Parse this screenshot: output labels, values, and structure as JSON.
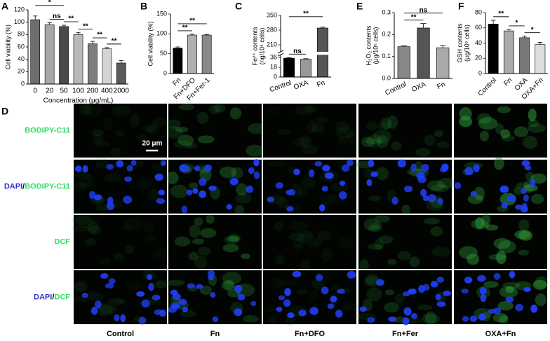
{
  "chart_data": [
    {
      "type": "bar",
      "panel": "A",
      "ylabel": [
        "Cell viability (%)"
      ],
      "xlabel": "Concentration (μg/mL)",
      "categories": [
        "0",
        "20",
        "50",
        "100",
        "200",
        "400",
        "2000"
      ],
      "values": [
        104,
        96,
        93,
        80,
        65,
        57,
        34
      ],
      "errors": [
        6,
        3,
        2,
        3,
        4,
        2,
        4
      ],
      "colors": [
        "#6e6e6e",
        "#a8a8a8",
        "#4a4a4a",
        "#b8b8b8",
        "#7d7d7d",
        "#d4d4d4",
        "#5a5a5a"
      ],
      "ylim": [
        0,
        120
      ],
      "yticks": [
        0,
        20,
        40,
        60,
        80,
        100,
        120
      ],
      "annotations": [
        {
          "text": "ns",
          "between": [
            "20",
            "50"
          ]
        },
        {
          "text": "*",
          "between": [
            "0",
            "50"
          ]
        },
        {
          "text": "**",
          "between": [
            "50",
            "100"
          ]
        },
        {
          "text": "**",
          "between": [
            "100",
            "200"
          ]
        },
        {
          "text": "**",
          "between": [
            "200",
            "400"
          ]
        },
        {
          "text": "**",
          "between": [
            "400",
            "2000"
          ]
        }
      ]
    },
    {
      "type": "bar",
      "panel": "B",
      "ylabel": [
        "Cell viability (%)"
      ],
      "categories": [
        "Fn",
        "Fn+DFO",
        "Fn+Fer-1"
      ],
      "values": [
        64,
        97,
        97
      ],
      "errors": [
        3,
        2,
        1.5
      ],
      "colors": [
        "#000000",
        "#b0b0b0",
        "#8a8a8a"
      ],
      "ylim": [
        0,
        150
      ],
      "yticks": [
        0,
        50,
        100,
        150
      ],
      "annotations": [
        {
          "text": "**",
          "between": [
            "Fn",
            "Fn+DFO"
          ]
        },
        {
          "text": "**",
          "between": [
            "Fn",
            "Fn+Fer-1"
          ]
        }
      ]
    },
    {
      "type": "bar",
      "panel": "C",
      "ylabel": [
        "Fe²⁺ contents",
        "(ng/10⁶ cells)"
      ],
      "categories": [
        "Control",
        "OXA",
        "Fn"
      ],
      "values": [
        35,
        33,
        290
      ],
      "errors": [
        1,
        1,
        4
      ],
      "colors": [
        "#000000",
        "#999999",
        "#555555"
      ],
      "ylim": [
        0,
        350
      ],
      "ybreak": [
        40,
        180
      ],
      "yticks": [
        0,
        18,
        36,
        210,
        280,
        350
      ],
      "annotations": [
        {
          "text": "ns",
          "between": [
            "Control",
            "OXA"
          ]
        },
        {
          "text": "**",
          "between": [
            "Control",
            "Fn"
          ]
        }
      ]
    },
    {
      "type": "bar",
      "panel": "E",
      "ylabel": [
        "H₂O₂ contents",
        "(μg/10⁶ cells)"
      ],
      "categories": [
        "Control",
        "OXA",
        "Fn"
      ],
      "values": [
        0.145,
        0.23,
        0.14
      ],
      "errors": [
        0.004,
        0.02,
        0.01
      ],
      "colors": [
        "#888888",
        "#555555",
        "#aaaaaa"
      ],
      "ylim": [
        0,
        0.3
      ],
      "yticks": [
        {
          "value": 0,
          "label": "0.0"
        },
        0.1,
        0.2,
        0.3
      ],
      "annotations": [
        {
          "text": "**",
          "between": [
            "Control",
            "OXA"
          ]
        },
        {
          "text": "ns",
          "between": [
            "Control",
            "Fn"
          ]
        }
      ]
    },
    {
      "type": "bar",
      "panel": "F",
      "ylabel": [
        "GSH contents",
        "(μg/10⁶ cells)"
      ],
      "categories": [
        "Control",
        "Fn",
        "OXA",
        "OXA+Fn"
      ],
      "values": [
        65,
        56,
        47,
        38
      ],
      "errors": [
        5,
        2,
        2,
        3
      ],
      "colors": [
        "#000000",
        "#aaaaaa",
        "#777777",
        "#dddddd"
      ],
      "ylim": [
        0,
        80
      ],
      "yticks": [
        0,
        20,
        40,
        60,
        80
      ],
      "annotations": [
        {
          "text": "**",
          "between": [
            "Control",
            "Fn"
          ]
        },
        {
          "text": "*",
          "between": [
            "Fn",
            "OXA"
          ]
        },
        {
          "text": "*",
          "between": [
            "OXA",
            "OXA+Fn"
          ]
        }
      ]
    }
  ],
  "image_panel": {
    "panel": "D",
    "rows": [
      [
        {
          "text": "BODIPY-C11",
          "color": "#33dd66"
        }
      ],
      [
        {
          "text": "DAPI",
          "color": "#3333cc"
        },
        {
          "text": "/",
          "color": "#000000"
        },
        {
          "text": "BODIPY-C11",
          "color": "#33dd66"
        }
      ],
      [
        {
          "text": "DCF",
          "color": "#33dd66"
        }
      ],
      [
        {
          "text": "DAPI",
          "color": "#3333cc"
        },
        {
          "text": "/",
          "color": "#000000"
        },
        {
          "text": "DCF",
          "color": "#33dd66"
        }
      ]
    ],
    "columns": [
      "Control",
      "Fn",
      "Fn+DFO",
      "Fn+Fer",
      "OXA+Fn"
    ],
    "scale_bar": "20 μm"
  }
}
